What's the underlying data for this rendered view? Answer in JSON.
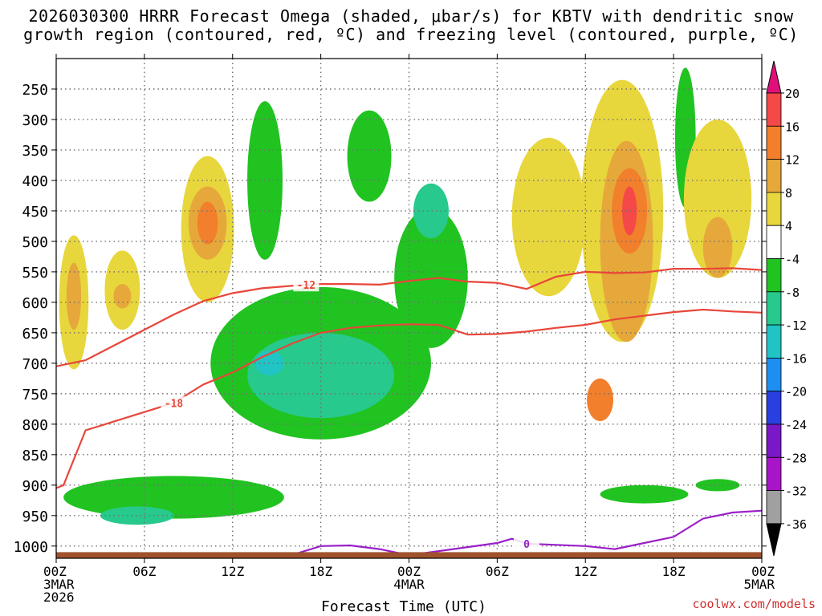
{
  "title_line1": "2026030300 HRRR Forecast Omega (shaded, μbar/s) for KBTV with dendritic snow",
  "title_line2": "growth region (contoured, red, ºC) and freezing level (contoured, purple, ºC)",
  "credit": "coolwx.com/models",
  "colors": {
    "frame": "#000000",
    "grid": "#707070",
    "contour_red": "#e8463a",
    "contour_purple": "#9a1fc9",
    "ground": "#a0522d"
  },
  "chart_data": {
    "type": "heatmap",
    "xlabel": "Forecast Time (UTC)",
    "ylabel": "",
    "x_hours": [
      0,
      6,
      12,
      18,
      24,
      30,
      36,
      42,
      48
    ],
    "x_tick_labels": [
      "00Z",
      "06Z",
      "12Z",
      "18Z",
      "00Z",
      "06Z",
      "12Z",
      "18Z",
      "00Z"
    ],
    "x_date_labels": [
      {
        "hour": 0,
        "line1": "3MAR",
        "line2": "2026"
      },
      {
        "hour": 24,
        "line1": "4MAR",
        "line2": ""
      },
      {
        "hour": 48,
        "line1": "5MAR",
        "line2": ""
      }
    ],
    "xlim": [
      0,
      48
    ],
    "y_levels_mb": [
      250,
      300,
      350,
      400,
      450,
      500,
      550,
      600,
      650,
      700,
      750,
      800,
      850,
      900,
      950,
      1000
    ],
    "ylim_mb": [
      200,
      1020
    ],
    "colorbar": {
      "units": "μbar/s",
      "labels": [
        "20",
        "16",
        "12",
        "8",
        "4",
        "-4",
        "-8",
        "-12",
        "-16",
        "-20",
        "-24",
        "-28",
        "-32",
        "-36"
      ],
      "bins": [
        {
          "lo": 20,
          "hi": null,
          "color": "#e0107a"
        },
        {
          "lo": 16,
          "hi": 20,
          "color": "#f54848"
        },
        {
          "lo": 12,
          "hi": 16,
          "color": "#f27f2b"
        },
        {
          "lo": 8,
          "hi": 12,
          "color": "#e6a83a"
        },
        {
          "lo": 4,
          "hi": 8,
          "color": "#e8d63d"
        },
        {
          "lo": -4,
          "hi": 4,
          "color": "#ffffff"
        },
        {
          "lo": -8,
          "hi": -4,
          "color": "#21c321"
        },
        {
          "lo": -12,
          "hi": -8,
          "color": "#27c98c"
        },
        {
          "lo": -16,
          "hi": -12,
          "color": "#21c4c4"
        },
        {
          "lo": -20,
          "hi": -16,
          "color": "#1e8ff0"
        },
        {
          "lo": -24,
          "hi": -20,
          "color": "#2a3fe0"
        },
        {
          "lo": -28,
          "hi": -24,
          "color": "#7a18c8"
        },
        {
          "lo": -32,
          "hi": -28,
          "color": "#a815c8"
        },
        {
          "lo": -36,
          "hi": -32,
          "color": "#a0a0a0"
        },
        {
          "lo": null,
          "hi": -36,
          "color": "#000000"
        }
      ]
    },
    "omega_features": [
      {
        "name": "yellow-00z",
        "value": 5,
        "t": 1.2,
        "p": 600,
        "dt": 1.0,
        "dp": 220
      },
      {
        "name": "orange-00z",
        "value": 9,
        "t": 1.2,
        "p": 590,
        "dt": 0.5,
        "dp": 110
      },
      {
        "name": "yellow-04z",
        "value": 5,
        "t": 4.5,
        "p": 580,
        "dt": 1.2,
        "dp": 130
      },
      {
        "name": "orange-04z",
        "value": 9,
        "t": 4.5,
        "p": 590,
        "dt": 0.6,
        "dp": 40
      },
      {
        "name": "yellow-10z",
        "value": 5,
        "t": 10.3,
        "p": 480,
        "dt": 1.8,
        "dp": 240
      },
      {
        "name": "orange-10z",
        "value": 9,
        "t": 10.3,
        "p": 470,
        "dt": 1.3,
        "dp": 120
      },
      {
        "name": "darkorange-10z",
        "value": 13,
        "t": 10.3,
        "p": 470,
        "dt": 0.7,
        "dp": 70
      },
      {
        "name": "green-mid",
        "value": -6,
        "t": 18,
        "p": 700,
        "dt": 7.5,
        "dp": 250
      },
      {
        "name": "teal-mid",
        "value": -10,
        "t": 18,
        "p": 720,
        "dt": 5.0,
        "dp": 140
      },
      {
        "name": "cyan-mid",
        "value": -14,
        "t": 14.5,
        "p": 700,
        "dt": 1.0,
        "dp": 40
      },
      {
        "name": "green-14z",
        "value": -6,
        "t": 14.2,
        "p": 400,
        "dt": 1.2,
        "dp": 260
      },
      {
        "name": "green-21z",
        "value": -6,
        "t": 21.3,
        "p": 360,
        "dt": 1.5,
        "dp": 150
      },
      {
        "name": "green-low",
        "value": -6,
        "t": 8,
        "p": 920,
        "dt": 7.5,
        "dp": 70
      },
      {
        "name": "teal-low",
        "value": -10,
        "t": 5.5,
        "p": 950,
        "dt": 2.5,
        "dp": 30
      },
      {
        "name": "green-00z4",
        "value": -6,
        "t": 25.5,
        "p": 560,
        "dt": 2.5,
        "dp": 230
      },
      {
        "name": "teal-00z4",
        "value": -10,
        "t": 25.5,
        "p": 450,
        "dt": 1.2,
        "dp": 90
      },
      {
        "name": "yellow-08z4",
        "value": 5,
        "t": 33.5,
        "p": 460,
        "dt": 2.5,
        "dp": 260
      },
      {
        "name": "yellow-15z4",
        "value": 5,
        "t": 38.5,
        "p": 450,
        "dt": 2.8,
        "dp": 430
      },
      {
        "name": "orange-15z4",
        "value": 9,
        "t": 38.8,
        "p": 500,
        "dt": 1.8,
        "dp": 330
      },
      {
        "name": "darkorange-15z4",
        "value": 13,
        "t": 39.0,
        "p": 450,
        "dt": 1.2,
        "dp": 140
      },
      {
        "name": "red-15z4",
        "value": 17,
        "t": 39.0,
        "p": 450,
        "dt": 0.5,
        "dp": 80
      },
      {
        "name": "darkorange-13z4",
        "value": 13,
        "t": 37.0,
        "p": 760,
        "dt": 0.9,
        "dp": 70
      },
      {
        "name": "green-19z4",
        "value": -6,
        "t": 42.8,
        "p": 330,
        "dt": 0.7,
        "dp": 230
      },
      {
        "name": "yellow-22z4",
        "value": 5,
        "t": 45.0,
        "p": 430,
        "dt": 2.3,
        "dp": 260
      },
      {
        "name": "orange-22z4",
        "value": 9,
        "t": 45.0,
        "p": 510,
        "dt": 1.0,
        "dp": 100
      },
      {
        "name": "green-12z4-low",
        "value": -6,
        "t": 40.0,
        "p": 915,
        "dt": 3.0,
        "dp": 30
      },
      {
        "name": "green-21z4-low",
        "value": -6,
        "t": 45.0,
        "p": 900,
        "dt": 1.5,
        "dp": 20
      }
    ],
    "contours": [
      {
        "name": "minus-12-isotherm",
        "label": "-12",
        "color": "red",
        "label_hour": 17,
        "points": [
          [
            0,
            705
          ],
          [
            2,
            695
          ],
          [
            4,
            670
          ],
          [
            6,
            645
          ],
          [
            8,
            620
          ],
          [
            10,
            598
          ],
          [
            12,
            585
          ],
          [
            14,
            577
          ],
          [
            16,
            573
          ],
          [
            18,
            570
          ],
          [
            20,
            570
          ],
          [
            22,
            571
          ],
          [
            24,
            565
          ],
          [
            26,
            560
          ],
          [
            28,
            566
          ],
          [
            30,
            568
          ],
          [
            32,
            578
          ],
          [
            34,
            558
          ],
          [
            36,
            550
          ],
          [
            38,
            552
          ],
          [
            40,
            551
          ],
          [
            42,
            545
          ],
          [
            44,
            545
          ],
          [
            46,
            544
          ],
          [
            48,
            547
          ]
        ]
      },
      {
        "name": "minus-18-isotherm",
        "label": "-18",
        "color": "red",
        "label_hour": 8,
        "points": [
          [
            0,
            905
          ],
          [
            0.5,
            900
          ],
          [
            1,
            870
          ],
          [
            2,
            810
          ],
          [
            4,
            795
          ],
          [
            6,
            780
          ],
          [
            8,
            765
          ],
          [
            10,
            735
          ],
          [
            12,
            715
          ],
          [
            14,
            690
          ],
          [
            16,
            668
          ],
          [
            18,
            650
          ],
          [
            20,
            642
          ],
          [
            22,
            638
          ],
          [
            24,
            636
          ],
          [
            26,
            637
          ],
          [
            28,
            653
          ],
          [
            30,
            652
          ],
          [
            32,
            648
          ],
          [
            34,
            642
          ],
          [
            36,
            637
          ],
          [
            38,
            628
          ],
          [
            40,
            622
          ],
          [
            42,
            616
          ],
          [
            44,
            612
          ],
          [
            46,
            615
          ],
          [
            48,
            617
          ]
        ]
      },
      {
        "name": "zero-isotherm",
        "label": "0",
        "color": "purple",
        "label_hour": 32,
        "points": [
          [
            16,
            1015
          ],
          [
            18,
            1000
          ],
          [
            20,
            999
          ],
          [
            22,
            1005
          ],
          [
            24,
            1015
          ],
          [
            30,
            995
          ],
          [
            31,
            988
          ],
          [
            32,
            996
          ],
          [
            34,
            998
          ],
          [
            36,
            1000
          ],
          [
            38,
            1005
          ],
          [
            40,
            995
          ],
          [
            42,
            985
          ],
          [
            44,
            955
          ],
          [
            46,
            945
          ],
          [
            48,
            942
          ]
        ]
      }
    ],
    "ground_level_mb": 1010
  }
}
